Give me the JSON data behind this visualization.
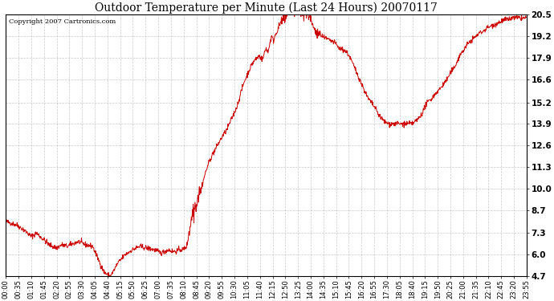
{
  "title": "Outdoor Temperature per Minute (Last 24 Hours) 20070117",
  "copyright_text": "Copyright 2007 Cartronics.com",
  "line_color": "#cc0000",
  "background_color": "#ffffff",
  "plot_background": "#ffffff",
  "grid_color": "#bbbbbb",
  "yticks": [
    4.7,
    6.0,
    7.3,
    8.7,
    10.0,
    11.3,
    12.6,
    13.9,
    15.2,
    16.6,
    17.9,
    19.2,
    20.5
  ],
  "ylim": [
    4.7,
    20.5
  ],
  "x_tick_labels": [
    "00:00",
    "00:35",
    "01:10",
    "01:45",
    "02:20",
    "02:55",
    "03:30",
    "04:05",
    "04:40",
    "05:15",
    "05:50",
    "06:25",
    "07:00",
    "07:35",
    "08:10",
    "08:45",
    "09:20",
    "09:55",
    "10:30",
    "11:05",
    "11:40",
    "12:15",
    "12:50",
    "13:25",
    "14:00",
    "14:35",
    "15:10",
    "15:45",
    "16:20",
    "16:55",
    "17:30",
    "18:05",
    "18:40",
    "19:15",
    "19:50",
    "20:25",
    "21:00",
    "21:35",
    "22:10",
    "22:45",
    "23:20",
    "23:55"
  ],
  "control_points": [
    [
      0,
      8.0
    ],
    [
      30,
      7.8
    ],
    [
      50,
      7.5
    ],
    [
      70,
      7.1
    ],
    [
      85,
      7.3
    ],
    [
      100,
      7.0
    ],
    [
      120,
      6.6
    ],
    [
      140,
      6.4
    ],
    [
      155,
      6.6
    ],
    [
      170,
      6.5
    ],
    [
      200,
      6.8
    ],
    [
      220,
      6.6
    ],
    [
      240,
      6.5
    ],
    [
      260,
      5.5
    ],
    [
      270,
      5.0
    ],
    [
      280,
      4.8
    ],
    [
      287,
      4.7
    ],
    [
      295,
      4.9
    ],
    [
      310,
      5.5
    ],
    [
      330,
      6.0
    ],
    [
      350,
      6.3
    ],
    [
      370,
      6.5
    ],
    [
      390,
      6.4
    ],
    [
      410,
      6.3
    ],
    [
      420,
      6.2
    ],
    [
      430,
      6.1
    ],
    [
      440,
      6.2
    ],
    [
      450,
      6.3
    ],
    [
      460,
      6.2
    ],
    [
      470,
      6.2
    ],
    [
      480,
      6.3
    ],
    [
      490,
      6.3
    ],
    [
      500,
      6.5
    ],
    [
      505,
      7.0
    ],
    [
      510,
      7.8
    ],
    [
      515,
      8.2
    ],
    [
      520,
      8.5
    ],
    [
      525,
      9.0
    ],
    [
      530,
      9.2
    ],
    [
      535,
      9.8
    ],
    [
      540,
      10.0
    ],
    [
      550,
      10.8
    ],
    [
      560,
      11.5
    ],
    [
      570,
      12.0
    ],
    [
      580,
      12.4
    ],
    [
      590,
      12.8
    ],
    [
      600,
      13.2
    ],
    [
      610,
      13.5
    ],
    [
      620,
      14.0
    ],
    [
      630,
      14.5
    ],
    [
      640,
      15.0
    ],
    [
      650,
      15.8
    ],
    [
      660,
      16.5
    ],
    [
      670,
      17.0
    ],
    [
      680,
      17.5
    ],
    [
      690,
      17.8
    ],
    [
      700,
      18.0
    ],
    [
      710,
      17.8
    ],
    [
      715,
      18.2
    ],
    [
      720,
      18.5
    ],
    [
      725,
      18.2
    ],
    [
      730,
      18.8
    ],
    [
      735,
      19.2
    ],
    [
      740,
      18.9
    ],
    [
      745,
      19.3
    ],
    [
      750,
      19.5
    ],
    [
      755,
      19.8
    ],
    [
      760,
      20.0
    ],
    [
      765,
      20.2
    ],
    [
      770,
      20.3
    ],
    [
      775,
      20.5
    ],
    [
      780,
      20.6
    ],
    [
      785,
      20.7
    ],
    [
      790,
      20.8
    ],
    [
      795,
      20.7
    ],
    [
      800,
      20.8
    ],
    [
      805,
      20.9
    ],
    [
      810,
      20.8
    ],
    [
      815,
      20.7
    ],
    [
      820,
      20.8
    ],
    [
      825,
      20.7
    ],
    [
      830,
      20.6
    ],
    [
      835,
      20.5
    ],
    [
      840,
      20.4
    ],
    [
      850,
      19.8
    ],
    [
      860,
      19.4
    ],
    [
      870,
      19.3
    ],
    [
      880,
      19.1
    ],
    [
      890,
      19.0
    ],
    [
      900,
      18.9
    ],
    [
      910,
      18.8
    ],
    [
      920,
      18.5
    ],
    [
      930,
      18.4
    ],
    [
      940,
      18.3
    ],
    [
      950,
      18.0
    ],
    [
      960,
      17.5
    ],
    [
      970,
      17.0
    ],
    [
      980,
      16.5
    ],
    [
      990,
      16.0
    ],
    [
      1000,
      15.5
    ],
    [
      1010,
      15.2
    ],
    [
      1020,
      14.9
    ],
    [
      1030,
      14.5
    ],
    [
      1040,
      14.2
    ],
    [
      1050,
      14.0
    ],
    [
      1060,
      13.9
    ],
    [
      1080,
      13.9
    ],
    [
      1100,
      13.9
    ],
    [
      1110,
      13.9
    ],
    [
      1120,
      13.9
    ],
    [
      1130,
      14.0
    ],
    [
      1140,
      14.2
    ],
    [
      1150,
      14.5
    ],
    [
      1160,
      15.0
    ],
    [
      1170,
      15.3
    ],
    [
      1180,
      15.5
    ],
    [
      1190,
      15.8
    ],
    [
      1200,
      16.0
    ],
    [
      1210,
      16.3
    ],
    [
      1220,
      16.6
    ],
    [
      1230,
      17.0
    ],
    [
      1240,
      17.3
    ],
    [
      1250,
      17.8
    ],
    [
      1260,
      18.2
    ],
    [
      1270,
      18.5
    ],
    [
      1280,
      18.8
    ],
    [
      1290,
      19.0
    ],
    [
      1300,
      19.2
    ],
    [
      1310,
      19.4
    ],
    [
      1320,
      19.5
    ],
    [
      1330,
      19.7
    ],
    [
      1340,
      19.8
    ],
    [
      1350,
      19.9
    ],
    [
      1360,
      20.0
    ],
    [
      1370,
      20.1
    ],
    [
      1380,
      20.2
    ],
    [
      1390,
      20.2
    ],
    [
      1400,
      20.3
    ],
    [
      1410,
      20.3
    ],
    [
      1420,
      20.3
    ],
    [
      1430,
      20.3
    ],
    [
      1439,
      20.3
    ]
  ]
}
